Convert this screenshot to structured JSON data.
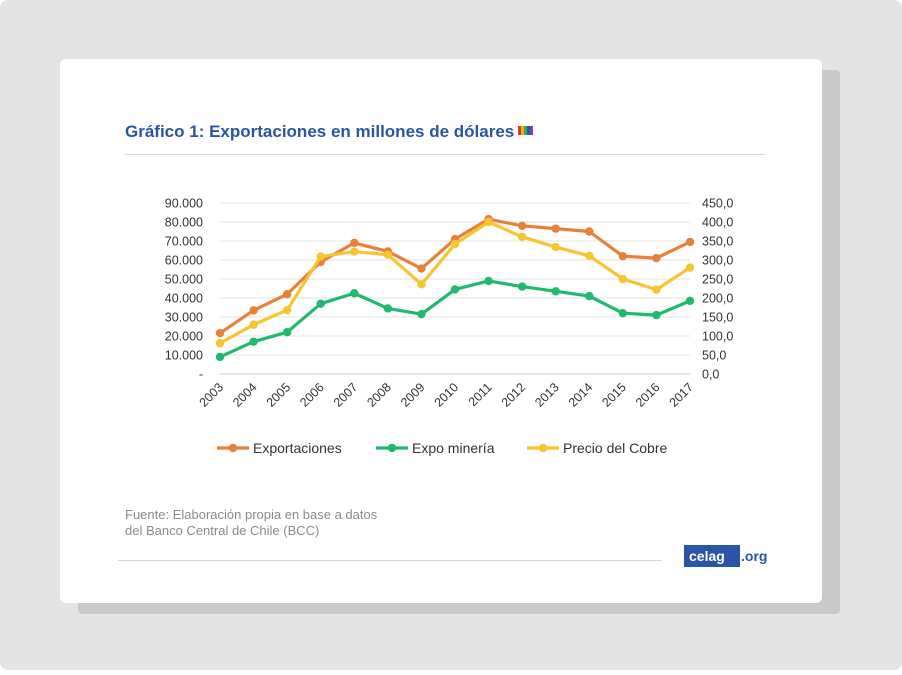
{
  "page": {
    "title": "Gráfico 1: Exportaciones en millones de dólares",
    "source_line1": "Fuente: Elaboración propia en base a datos",
    "source_line2": "del Banco Central de Chile (BCC)",
    "logo_main": "celag",
    "logo_ext": ".org"
  },
  "chart_data": {
    "type": "line",
    "title": "Gráfico 1: Exportaciones en millones de dólares",
    "x": [
      "2003",
      "2004",
      "2005",
      "2006",
      "2007",
      "2008",
      "2009",
      "2010",
      "2011",
      "2012",
      "2013",
      "2014",
      "2015",
      "2016",
      "2017"
    ],
    "y_left": {
      "range": [
        0,
        90000
      ],
      "ticks": [
        0,
        10000,
        20000,
        30000,
        40000,
        50000,
        60000,
        70000,
        80000,
        90000
      ],
      "tick_labels": [
        "-",
        "10.000",
        "20.000",
        "30.000",
        "40.000",
        "50.000",
        "60.000",
        "70.000",
        "80.000",
        "90.000"
      ]
    },
    "y_right": {
      "range": [
        0,
        450
      ],
      "ticks": [
        0,
        50,
        100,
        150,
        200,
        250,
        300,
        350,
        400,
        450
      ],
      "tick_labels": [
        "0,0",
        "50,0",
        "100,0",
        "150,0",
        "200,0",
        "250,0",
        "300,0",
        "350,0",
        "400,0",
        "450,0"
      ]
    },
    "grid": true,
    "legend": "bottom",
    "series": [
      {
        "name": "Exportaciones",
        "axis": "left",
        "color": "#e8803a",
        "values": [
          21500,
          33500,
          42000,
          59000,
          69000,
          64500,
          55500,
          71000,
          81500,
          78000,
          76500,
          75000,
          62000,
          61000,
          69500
        ]
      },
      {
        "name": "Expo minería",
        "axis": "left",
        "color": "#1fba6e",
        "values": [
          9000,
          17000,
          22000,
          37000,
          42500,
          34500,
          31500,
          44500,
          49000,
          46000,
          43500,
          41000,
          32000,
          31000,
          38500
        ]
      },
      {
        "name": "Precio del Cobre",
        "axis": "right",
        "color": "#f6c52f",
        "values": [
          81,
          130,
          168,
          309,
          322,
          314,
          236,
          342,
          400,
          361,
          334,
          311,
          250,
          222,
          280
        ]
      }
    ]
  }
}
